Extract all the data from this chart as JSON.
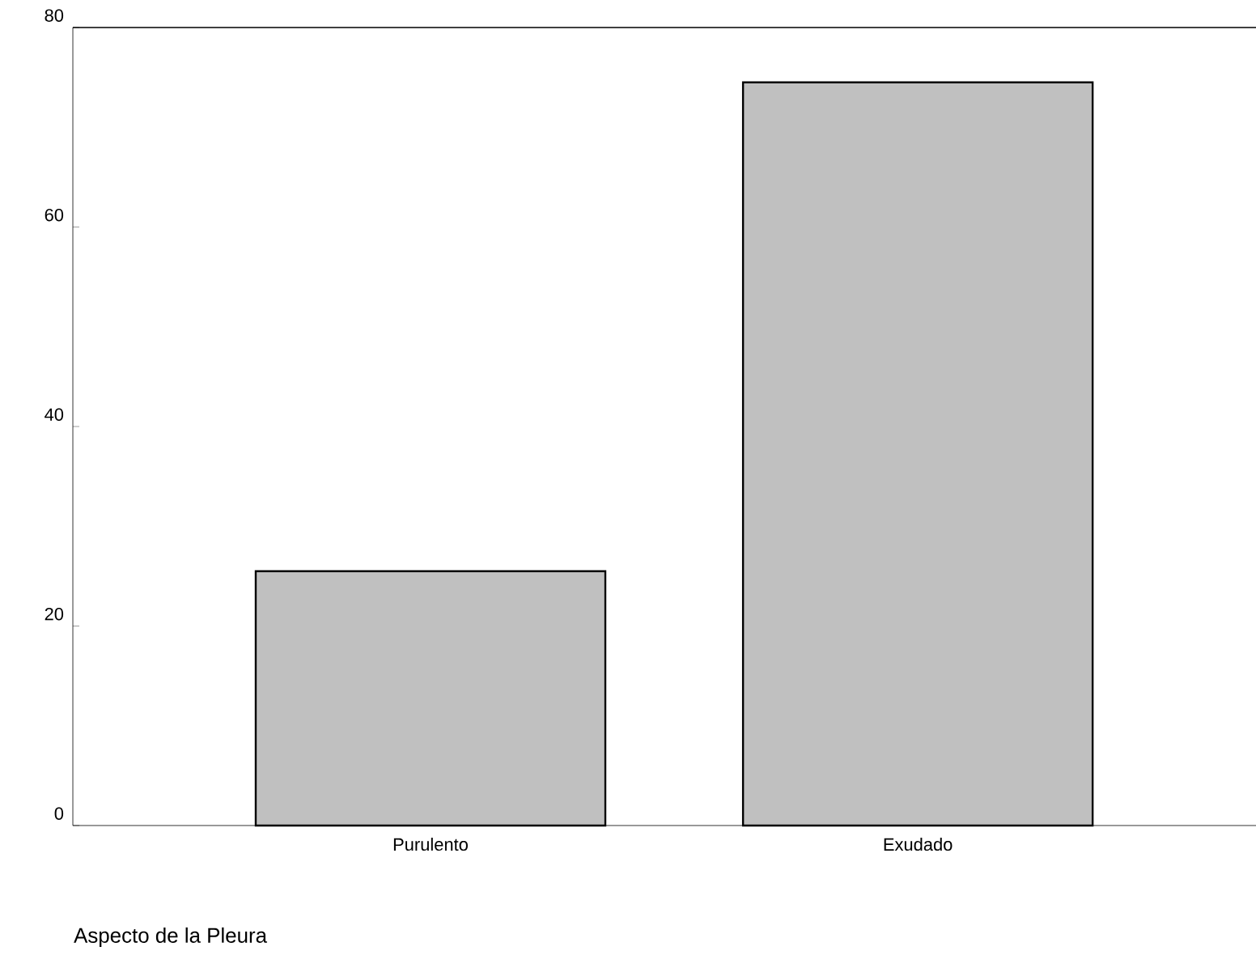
{
  "chart_data": {
    "type": "bar",
    "xlabel": "Aspecto de la Pleura",
    "categories": [
      "Purulento",
      "Exudado"
    ],
    "values": [
      25.5,
      74.5
    ],
    "color": "#c0c0c0",
    "ylim": [
      0,
      80
    ],
    "yticks": [
      0,
      20,
      40,
      60,
      80
    ],
    "grid": false
  }
}
